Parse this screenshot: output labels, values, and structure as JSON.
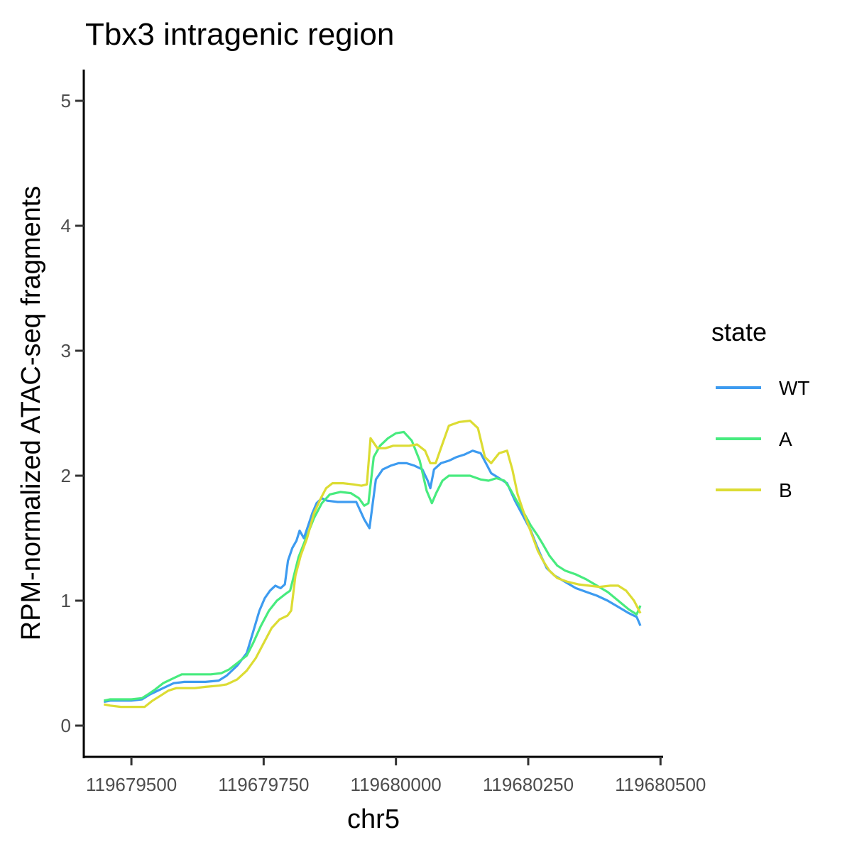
{
  "chart_data": {
    "type": "line",
    "title": "Tbx3 intragenic region",
    "xlabel": "chr5",
    "ylabel": "RPM-normalized ATAC-seq fragments",
    "xlim": [
      119679410,
      119680505
    ],
    "ylim": [
      -0.25,
      5.25
    ],
    "x_ticks": [
      119679500,
      119679750,
      119680000,
      119680250,
      119680500
    ],
    "x_tick_labels": [
      "119679500",
      "119679750",
      "119680000",
      "119680250",
      "119680500"
    ],
    "y_ticks": [
      0,
      1,
      2,
      3,
      4,
      5
    ],
    "y_tick_labels": [
      "0",
      "1",
      "2",
      "3",
      "4",
      "5"
    ],
    "grid": false,
    "legend": {
      "title": "state",
      "position": "right"
    },
    "series": [
      {
        "name": "WT",
        "color": "#3D9BF0",
        "points": [
          [
            119679448,
            0.19
          ],
          [
            119679460,
            0.2
          ],
          [
            119679480,
            0.2
          ],
          [
            119679500,
            0.2
          ],
          [
            119679520,
            0.21
          ],
          [
            119679535,
            0.25
          ],
          [
            119679545,
            0.27
          ],
          [
            119679560,
            0.3
          ],
          [
            119679580,
            0.34
          ],
          [
            119679600,
            0.35
          ],
          [
            119679620,
            0.35
          ],
          [
            119679640,
            0.35
          ],
          [
            119679665,
            0.36
          ],
          [
            119679680,
            0.4
          ],
          [
            119679700,
            0.48
          ],
          [
            119679718,
            0.58
          ],
          [
            119679730,
            0.75
          ],
          [
            119679742,
            0.92
          ],
          [
            119679752,
            1.02
          ],
          [
            119679762,
            1.08
          ],
          [
            119679772,
            1.12
          ],
          [
            119679782,
            1.1
          ],
          [
            119679790,
            1.13
          ],
          [
            119679796,
            1.32
          ],
          [
            119679804,
            1.42
          ],
          [
            119679812,
            1.48
          ],
          [
            119679818,
            1.56
          ],
          [
            119679826,
            1.5
          ],
          [
            119679834,
            1.6
          ],
          [
            119679842,
            1.7
          ],
          [
            119679850,
            1.78
          ],
          [
            119679860,
            1.82
          ],
          [
            119679870,
            1.8
          ],
          [
            119679890,
            1.79
          ],
          [
            119679910,
            1.79
          ],
          [
            119679925,
            1.79
          ],
          [
            119679940,
            1.65
          ],
          [
            119679950,
            1.58
          ],
          [
            119679962,
            1.97
          ],
          [
            119679975,
            2.05
          ],
          [
            119679990,
            2.08
          ],
          [
            119680005,
            2.1
          ],
          [
            119680020,
            2.1
          ],
          [
            119680035,
            2.08
          ],
          [
            119680050,
            2.05
          ],
          [
            119680060,
            1.96
          ],
          [
            119680065,
            1.9
          ],
          [
            119680072,
            2.05
          ],
          [
            119680085,
            2.1
          ],
          [
            119680100,
            2.12
          ],
          [
            119680115,
            2.15
          ],
          [
            119680130,
            2.17
          ],
          [
            119680145,
            2.2
          ],
          [
            119680160,
            2.18
          ],
          [
            119680170,
            2.1
          ],
          [
            119680180,
            2.02
          ],
          [
            119680195,
            1.98
          ],
          [
            119680210,
            1.94
          ],
          [
            119680225,
            1.8
          ],
          [
            119680240,
            1.68
          ],
          [
            119680255,
            1.56
          ],
          [
            119680265,
            1.45
          ],
          [
            119680275,
            1.35
          ],
          [
            119680285,
            1.26
          ],
          [
            119680300,
            1.2
          ],
          [
            119680320,
            1.15
          ],
          [
            119680340,
            1.1
          ],
          [
            119680360,
            1.07
          ],
          [
            119680380,
            1.04
          ],
          [
            119680400,
            1.0
          ],
          [
            119680420,
            0.95
          ],
          [
            119680440,
            0.9
          ],
          [
            119680455,
            0.87
          ],
          [
            119680462,
            0.8
          ]
        ]
      },
      {
        "name": "A",
        "color": "#47EB7E",
        "points": [
          [
            119679448,
            0.2
          ],
          [
            119679460,
            0.21
          ],
          [
            119679480,
            0.21
          ],
          [
            119679500,
            0.21
          ],
          [
            119679520,
            0.22
          ],
          [
            119679535,
            0.26
          ],
          [
            119679545,
            0.29
          ],
          [
            119679560,
            0.34
          ],
          [
            119679580,
            0.38
          ],
          [
            119679595,
            0.41
          ],
          [
            119679620,
            0.41
          ],
          [
            119679650,
            0.41
          ],
          [
            119679670,
            0.42
          ],
          [
            119679685,
            0.45
          ],
          [
            119679700,
            0.5
          ],
          [
            119679718,
            0.56
          ],
          [
            119679730,
            0.66
          ],
          [
            119679745,
            0.8
          ],
          [
            119679760,
            0.92
          ],
          [
            119679775,
            1.0
          ],
          [
            119679790,
            1.05
          ],
          [
            119679800,
            1.08
          ],
          [
            119679806,
            1.18
          ],
          [
            119679816,
            1.35
          ],
          [
            119679830,
            1.5
          ],
          [
            119679845,
            1.66
          ],
          [
            119679860,
            1.78
          ],
          [
            119679875,
            1.85
          ],
          [
            119679895,
            1.87
          ],
          [
            119679915,
            1.86
          ],
          [
            119679930,
            1.82
          ],
          [
            119679940,
            1.76
          ],
          [
            119679948,
            1.78
          ],
          [
            119679958,
            2.15
          ],
          [
            119679970,
            2.24
          ],
          [
            119679985,
            2.3
          ],
          [
            119680000,
            2.34
          ],
          [
            119680015,
            2.35
          ],
          [
            119680030,
            2.28
          ],
          [
            119680045,
            2.12
          ],
          [
            119680058,
            1.88
          ],
          [
            119680068,
            1.78
          ],
          [
            119680076,
            1.86
          ],
          [
            119680088,
            1.96
          ],
          [
            119680100,
            2.0
          ],
          [
            119680120,
            2.0
          ],
          [
            119680140,
            2.0
          ],
          [
            119680160,
            1.97
          ],
          [
            119680175,
            1.96
          ],
          [
            119680190,
            1.98
          ],
          [
            119680205,
            1.96
          ],
          [
            119680215,
            1.9
          ],
          [
            119680228,
            1.8
          ],
          [
            119680242,
            1.7
          ],
          [
            119680255,
            1.6
          ],
          [
            119680268,
            1.52
          ],
          [
            119680278,
            1.45
          ],
          [
            119680290,
            1.36
          ],
          [
            119680305,
            1.28
          ],
          [
            119680320,
            1.24
          ],
          [
            119680340,
            1.21
          ],
          [
            119680360,
            1.17
          ],
          [
            119680380,
            1.12
          ],
          [
            119680400,
            1.07
          ],
          [
            119680420,
            1.0
          ],
          [
            119680440,
            0.93
          ],
          [
            119680455,
            0.89
          ],
          [
            119680462,
            0.96
          ]
        ]
      },
      {
        "name": "B",
        "color": "#DCDC33",
        "points": [
          [
            119679448,
            0.17
          ],
          [
            119679460,
            0.16
          ],
          [
            119679480,
            0.15
          ],
          [
            119679500,
            0.15
          ],
          [
            119679525,
            0.15
          ],
          [
            119679540,
            0.2
          ],
          [
            119679555,
            0.24
          ],
          [
            119679570,
            0.28
          ],
          [
            119679585,
            0.3
          ],
          [
            119679600,
            0.3
          ],
          [
            119679620,
            0.3
          ],
          [
            119679640,
            0.31
          ],
          [
            119679665,
            0.32
          ],
          [
            119679680,
            0.33
          ],
          [
            119679700,
            0.37
          ],
          [
            119679718,
            0.44
          ],
          [
            119679735,
            0.54
          ],
          [
            119679750,
            0.66
          ],
          [
            119679765,
            0.78
          ],
          [
            119679780,
            0.85
          ],
          [
            119679795,
            0.88
          ],
          [
            119679802,
            0.92
          ],
          [
            119679810,
            1.2
          ],
          [
            119679820,
            1.36
          ],
          [
            119679832,
            1.5
          ],
          [
            119679845,
            1.7
          ],
          [
            119679858,
            1.82
          ],
          [
            119679868,
            1.9
          ],
          [
            119679880,
            1.94
          ],
          [
            119679900,
            1.94
          ],
          [
            119679920,
            1.93
          ],
          [
            119679935,
            1.92
          ],
          [
            119679945,
            1.93
          ],
          [
            119679952,
            2.3
          ],
          [
            119679965,
            2.22
          ],
          [
            119679980,
            2.22
          ],
          [
            119679995,
            2.24
          ],
          [
            119680010,
            2.24
          ],
          [
            119680025,
            2.24
          ],
          [
            119680040,
            2.25
          ],
          [
            119680055,
            2.2
          ],
          [
            119680065,
            2.1
          ],
          [
            119680075,
            2.1
          ],
          [
            119680085,
            2.22
          ],
          [
            119680100,
            2.4
          ],
          [
            119680120,
            2.43
          ],
          [
            119680140,
            2.44
          ],
          [
            119680155,
            2.38
          ],
          [
            119680168,
            2.15
          ],
          [
            119680180,
            2.1
          ],
          [
            119680195,
            2.18
          ],
          [
            119680210,
            2.2
          ],
          [
            119680220,
            2.05
          ],
          [
            119680230,
            1.85
          ],
          [
            119680242,
            1.7
          ],
          [
            119680255,
            1.55
          ],
          [
            119680268,
            1.4
          ],
          [
            119680278,
            1.32
          ],
          [
            119680290,
            1.24
          ],
          [
            119680305,
            1.18
          ],
          [
            119680325,
            1.15
          ],
          [
            119680345,
            1.13
          ],
          [
            119680365,
            1.12
          ],
          [
            119680385,
            1.11
          ],
          [
            119680405,
            1.12
          ],
          [
            119680420,
            1.12
          ],
          [
            119680435,
            1.08
          ],
          [
            119680450,
            1.0
          ],
          [
            119680462,
            0.9
          ]
        ]
      }
    ]
  }
}
